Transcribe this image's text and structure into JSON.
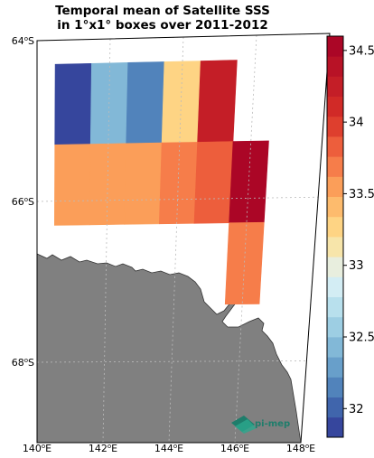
{
  "title": {
    "line1": "Temporal mean of Satellite SSS",
    "line2": "in 1°x1° boxes over 2011-2012"
  },
  "chart_data": {
    "type": "heatmap",
    "projection": "stereographic map",
    "lon_ticks": [
      {
        "value": 140,
        "label": "140°E"
      },
      {
        "value": 142,
        "label": "142°E"
      },
      {
        "value": 144,
        "label": "144°E"
      },
      {
        "value": 146,
        "label": "146°E"
      },
      {
        "value": 148,
        "label": "148°E"
      }
    ],
    "lat_ticks": [
      {
        "value": -64,
        "label": "64°S"
      },
      {
        "value": -66,
        "label": "66°S"
      },
      {
        "value": -68,
        "label": "68°S"
      }
    ],
    "lon_range": [
      140,
      148
    ],
    "lat_range": [
      -69,
      -64
    ],
    "grid": true,
    "colorbar": {
      "min": 31.8,
      "max": 34.6,
      "ticks": [
        "32",
        "32.5",
        "33",
        "33.5",
        "34",
        "34.5"
      ],
      "tick_values": [
        32,
        32.5,
        33,
        33.5,
        34,
        34.5
      ],
      "colormap": "RdYlBu_r",
      "n_colors": 20
    },
    "cells": [
      {
        "lon": [
          140.5,
          141.5
        ],
        "lat": [
          -65.3,
          -64.3
        ],
        "value": 31.9
      },
      {
        "lon": [
          141.5,
          142.5
        ],
        "lat": [
          -65.3,
          -64.3
        ],
        "value": 32.4
      },
      {
        "lon": [
          142.5,
          143.5
        ],
        "lat": [
          -65.3,
          -64.3
        ],
        "value": 32.2
      },
      {
        "lon": [
          143.5,
          144.5
        ],
        "lat": [
          -65.3,
          -64.3
        ],
        "value": 33.2
      },
      {
        "lon": [
          144.5,
          145.5
        ],
        "lat": [
          -65.3,
          -64.3
        ],
        "value": 34.2
      },
      {
        "lon": [
          140.5,
          141.5
        ],
        "lat": [
          -66.3,
          -65.3
        ],
        "value": 33.5
      },
      {
        "lon": [
          141.5,
          142.5
        ],
        "lat": [
          -66.3,
          -65.3
        ],
        "value": 33.5
      },
      {
        "lon": [
          142.5,
          143.5
        ],
        "lat": [
          -66.3,
          -65.3
        ],
        "value": 33.5
      },
      {
        "lon": [
          143.5,
          144.5
        ],
        "lat": [
          -66.3,
          -65.3
        ],
        "value": 33.7
      },
      {
        "lon": [
          144.5,
          145.5
        ],
        "lat": [
          -66.3,
          -65.3
        ],
        "value": 33.9
      },
      {
        "lon": [
          145.5,
          146.5
        ],
        "lat": [
          -66.3,
          -65.3
        ],
        "value": 34.5
      },
      {
        "lon": [
          145.5,
          146.5
        ],
        "lat": [
          -67.3,
          -66.3
        ],
        "value": 33.7
      }
    ],
    "land_color": "#808080",
    "logo_text": [
      "pi-mep"
    ]
  }
}
